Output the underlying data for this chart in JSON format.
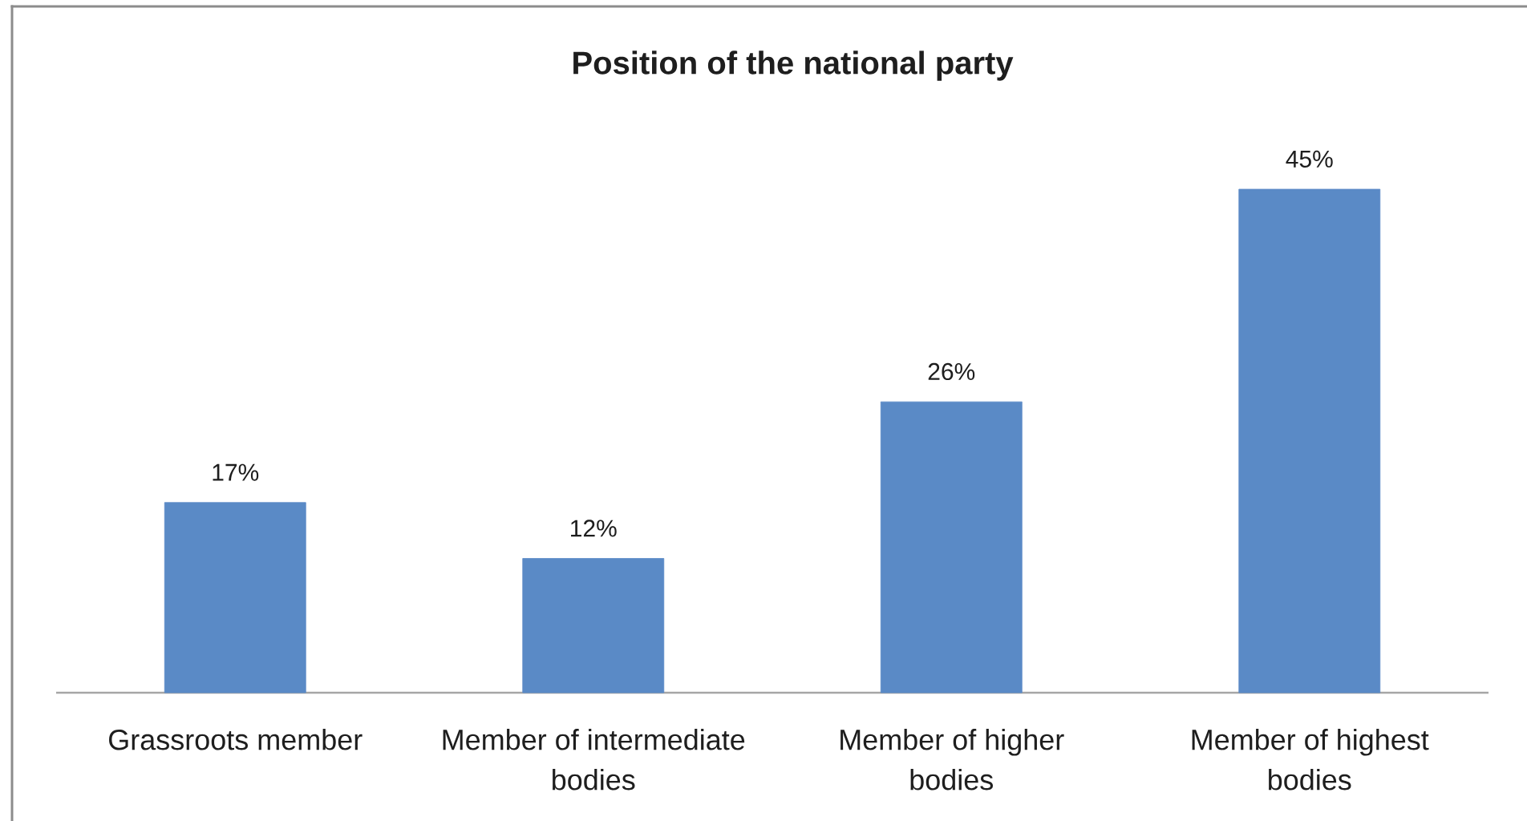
{
  "chart_data": {
    "type": "bar",
    "title": "Position of the national party",
    "categories": [
      "Grassroots member",
      "Member of intermediate bodies",
      "Member of higher bodies",
      "Member of highest bodies"
    ],
    "values": [
      17,
      12,
      26,
      45
    ],
    "value_labels": [
      "17%",
      "12%",
      "26%",
      "45%"
    ],
    "color": "#5a8ac6",
    "tick_labels": "x"
  }
}
